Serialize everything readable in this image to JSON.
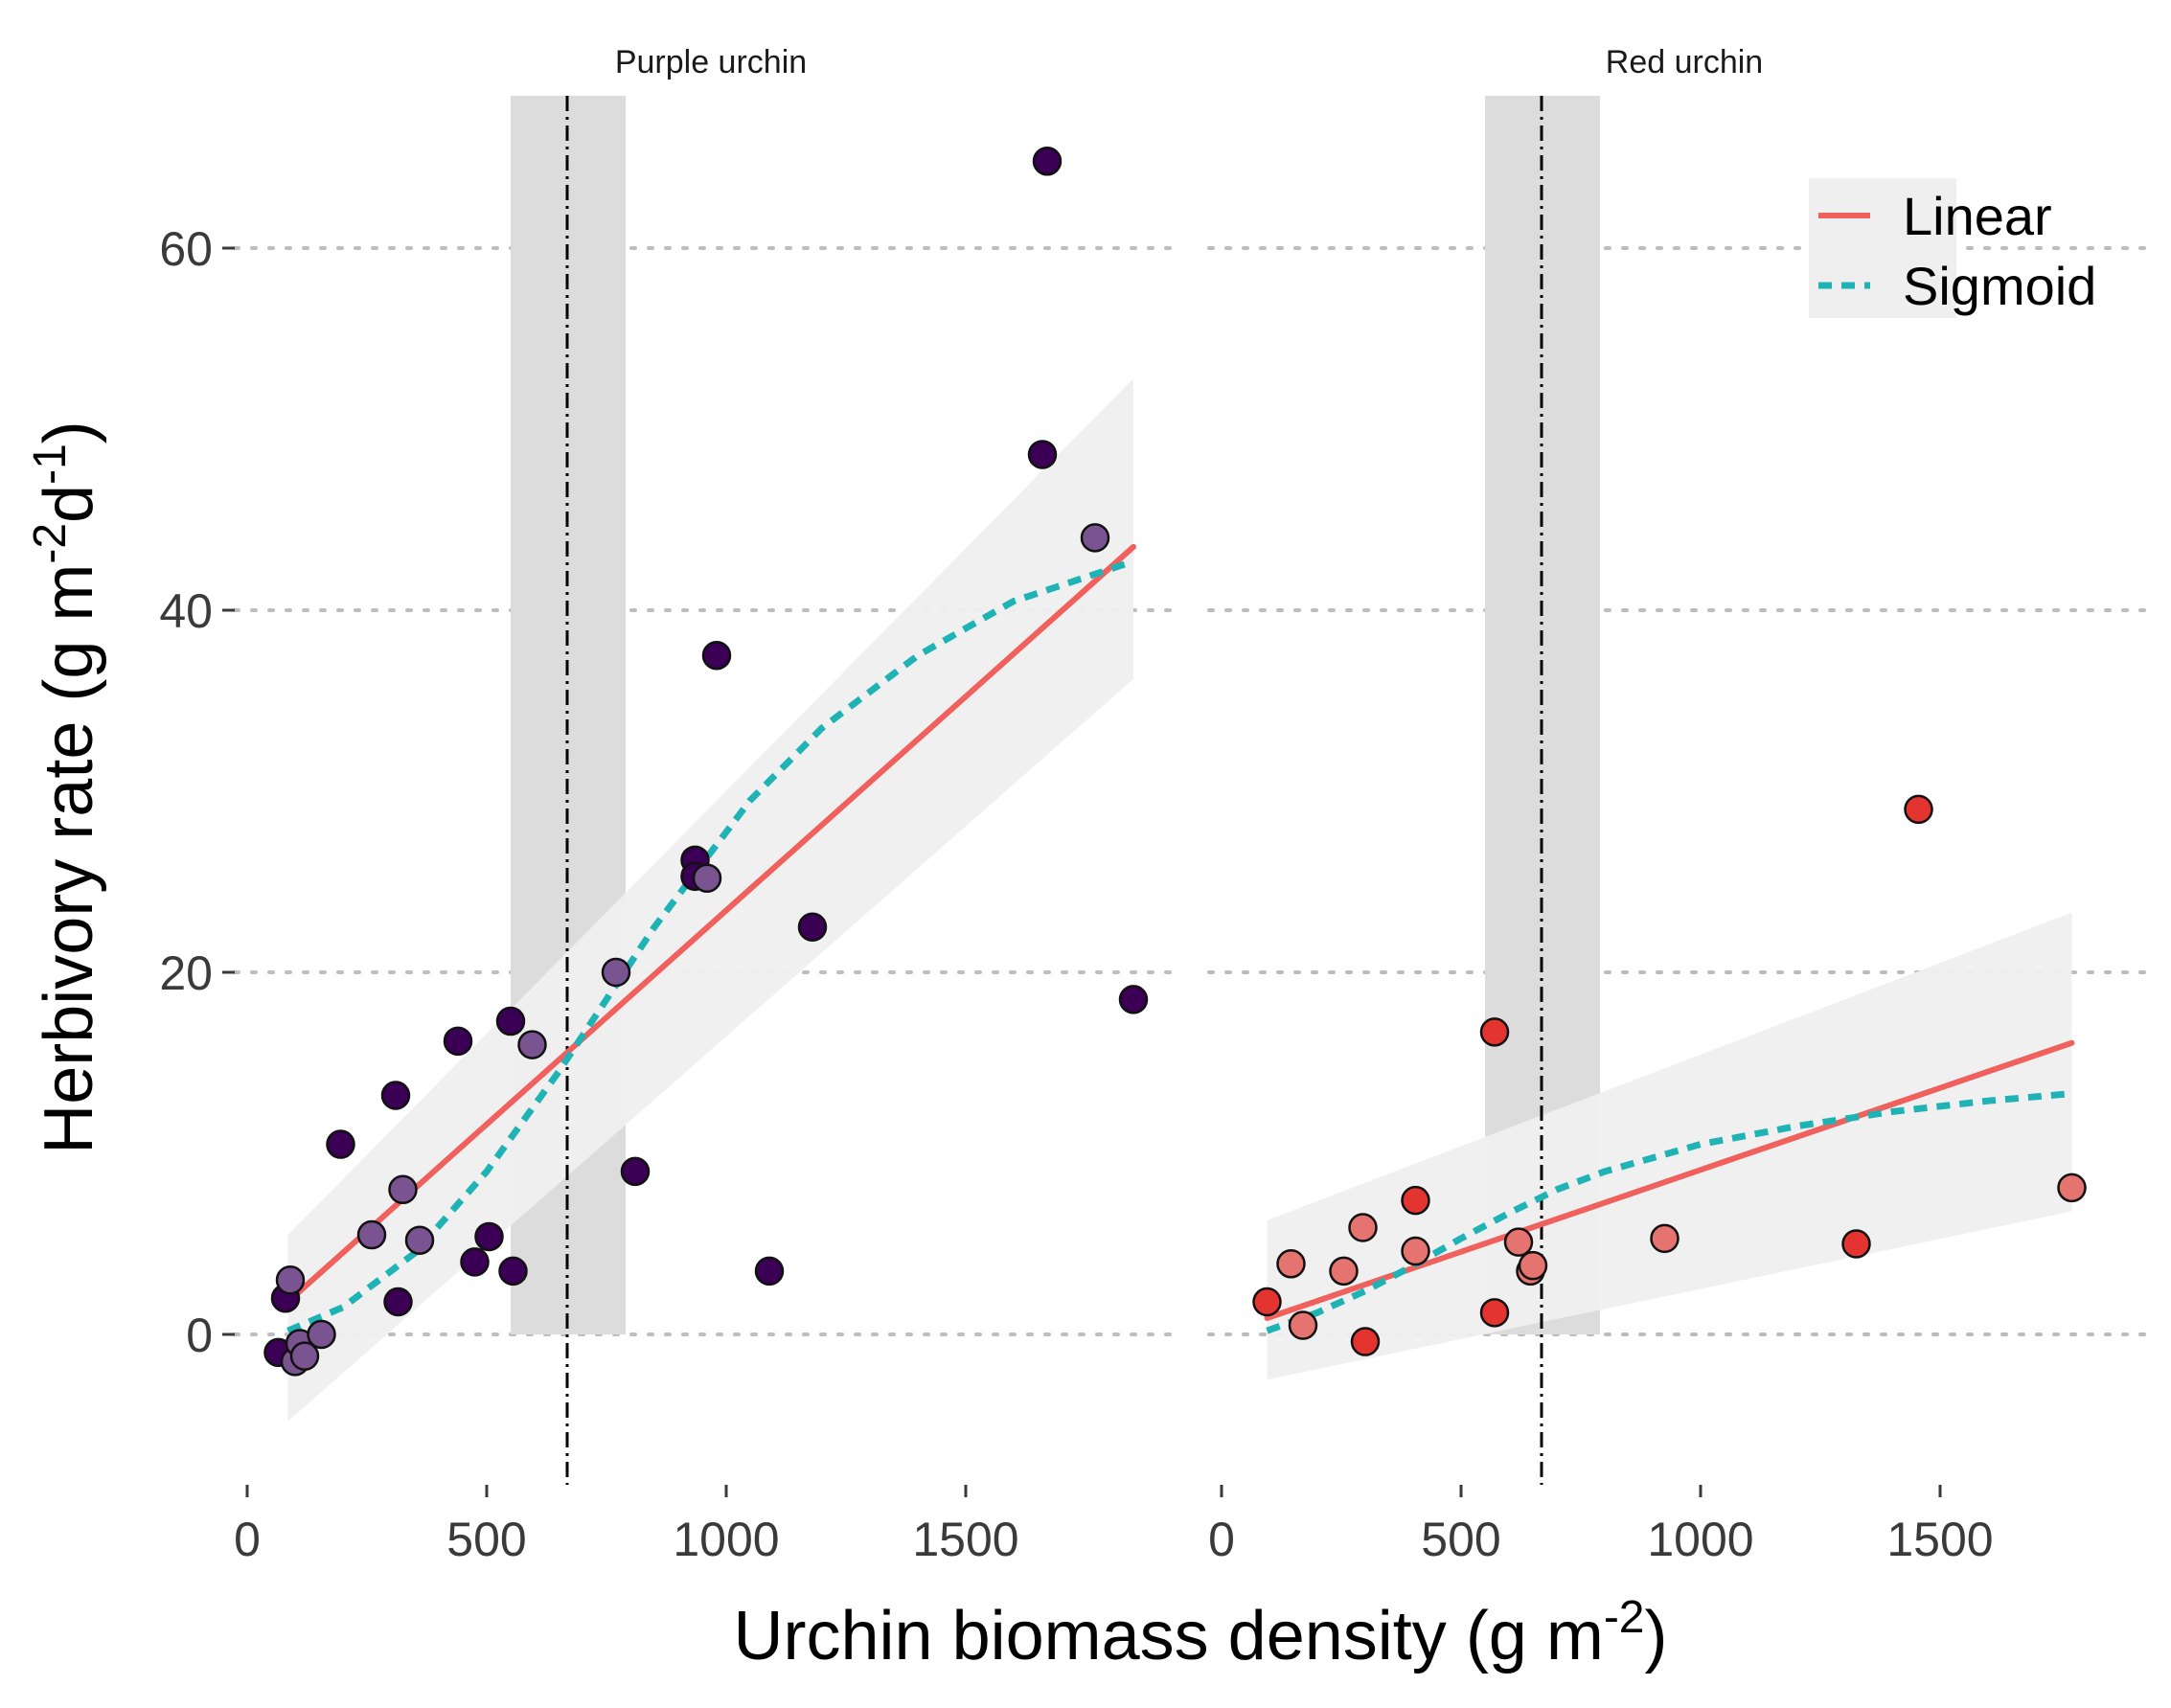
{
  "chart_data": {
    "type": "scatter",
    "xlabel": "Urchin biomass density (g m",
    "xlabel_sup": "-2",
    "xlabel_end": ")",
    "ylabel": "Herbivory rate (g m",
    "ylabel_sup1": "-2",
    "ylabel_mid": "d",
    "ylabel_sup2": "-1",
    "ylabel_end": ")",
    "y_ticks": [
      "0",
      "20",
      "40",
      "60"
    ],
    "x_ticks": [
      "0",
      "500",
      "1000",
      "1500"
    ],
    "ylim": [
      -8,
      68
    ],
    "xlim": [
      -50,
      1950
    ],
    "grid": "horizontal dotted",
    "legend": {
      "position": "top-right",
      "entries": [
        {
          "label": "Linear",
          "color": "#F0605D",
          "style": "solid"
        },
        {
          "label": "Sigmoid",
          "color": "#1FB3B5",
          "style": "dashed"
        }
      ]
    },
    "colors": {
      "linear": "#F0605D",
      "sigmoid": "#1FB3B5",
      "ci_band": "#EFEFEF",
      "threshold_band": "#DCDCDC",
      "purple_dark": "#3B0056",
      "purple_light": "#7A5491",
      "red_dark": "#E3342F",
      "red_light": "#E5736F"
    },
    "panels": [
      {
        "name": "Purple urchin",
        "threshold": 668,
        "threshold_band": [
          550,
          790
        ],
        "linear": [
          [
            85,
            1.8
          ],
          [
            1850,
            43.5
          ]
        ],
        "ci_band": {
          "x": [
            85,
            1850
          ],
          "upper": [
            5.5,
            52.8
          ],
          "lower": [
            -4.8,
            36.2
          ]
        },
        "sigmoid": [
          [
            85,
            0.2
          ],
          [
            200,
            1.5
          ],
          [
            350,
            4.5
          ],
          [
            500,
            9
          ],
          [
            650,
            14.5
          ],
          [
            750,
            18.5
          ],
          [
            850,
            22.5
          ],
          [
            950,
            26
          ],
          [
            1050,
            29.5
          ],
          [
            1200,
            33.5
          ],
          [
            1400,
            37.5
          ],
          [
            1600,
            40.5
          ],
          [
            1850,
            42.7
          ]
        ],
        "points": [
          {
            "x": 65,
            "y": -1,
            "shade": "dark"
          },
          {
            "x": 80,
            "y": 2,
            "shade": "dark"
          },
          {
            "x": 90,
            "y": 3,
            "shade": "light"
          },
          {
            "x": 100,
            "y": -1.5,
            "shade": "light"
          },
          {
            "x": 110,
            "y": -0.5,
            "shade": "light"
          },
          {
            "x": 120,
            "y": -1.2,
            "shade": "light"
          },
          {
            "x": 155,
            "y": 0,
            "shade": "light"
          },
          {
            "x": 195,
            "y": 10.5,
            "shade": "dark"
          },
          {
            "x": 260,
            "y": 5.5,
            "shade": "light"
          },
          {
            "x": 310,
            "y": 13.2,
            "shade": "dark"
          },
          {
            "x": 315,
            "y": 1.8,
            "shade": "dark"
          },
          {
            "x": 325,
            "y": 8,
            "shade": "light"
          },
          {
            "x": 360,
            "y": 5.2,
            "shade": "light"
          },
          {
            "x": 440,
            "y": 16.2,
            "shade": "dark"
          },
          {
            "x": 475,
            "y": 4,
            "shade": "dark"
          },
          {
            "x": 505,
            "y": 5.4,
            "shade": "dark"
          },
          {
            "x": 550,
            "y": 17.3,
            "shade": "dark"
          },
          {
            "x": 555,
            "y": 3.5,
            "shade": "dark"
          },
          {
            "x": 595,
            "y": 16,
            "shade": "light"
          },
          {
            "x": 770,
            "y": 20,
            "shade": "light"
          },
          {
            "x": 810,
            "y": 9,
            "shade": "dark"
          },
          {
            "x": 935,
            "y": 26.2,
            "shade": "dark"
          },
          {
            "x": 935,
            "y": 25.3,
            "shade": "dark"
          },
          {
            "x": 960,
            "y": 25.2,
            "shade": "light"
          },
          {
            "x": 980,
            "y": 37.5,
            "shade": "dark"
          },
          {
            "x": 1090,
            "y": 3.5,
            "shade": "dark"
          },
          {
            "x": 1180,
            "y": 22.5,
            "shade": "dark"
          },
          {
            "x": 1670,
            "y": 64.8,
            "shade": "dark"
          },
          {
            "x": 1660,
            "y": 48.6,
            "shade": "dark"
          },
          {
            "x": 1770,
            "y": 44,
            "shade": "light"
          },
          {
            "x": 1850,
            "y": 18.5,
            "shade": "dark"
          }
        ]
      },
      {
        "name": "Red urchin",
        "threshold": 668,
        "threshold_band": [
          550,
          790
        ],
        "linear": [
          [
            95,
            0.9
          ],
          [
            1775,
            16.1
          ]
        ],
        "ci_band": {
          "x": [
            95,
            1775
          ],
          "upper": [
            6.3,
            23.3
          ],
          "lower": [
            -2.5,
            6.8
          ]
        },
        "sigmoid": [
          [
            95,
            0.2
          ],
          [
            200,
            1.2
          ],
          [
            300,
            2.4
          ],
          [
            400,
            3.8
          ],
          [
            500,
            5.3
          ],
          [
            600,
            6.7
          ],
          [
            700,
            8
          ],
          [
            800,
            9
          ],
          [
            1000,
            10.5
          ],
          [
            1200,
            11.5
          ],
          [
            1400,
            12.3
          ],
          [
            1600,
            12.9
          ],
          [
            1775,
            13.3
          ]
        ],
        "points": [
          {
            "x": 95,
            "y": 1.8,
            "shade": "dark"
          },
          {
            "x": 145,
            "y": 3.9,
            "shade": "light"
          },
          {
            "x": 170,
            "y": 0.5,
            "shade": "light"
          },
          {
            "x": 255,
            "y": 3.5,
            "shade": "light"
          },
          {
            "x": 295,
            "y": 5.9,
            "shade": "light"
          },
          {
            "x": 300,
            "y": -0.4,
            "shade": "dark"
          },
          {
            "x": 405,
            "y": 7.4,
            "shade": "dark"
          },
          {
            "x": 405,
            "y": 4.6,
            "shade": "light"
          },
          {
            "x": 570,
            "y": 16.7,
            "shade": "dark"
          },
          {
            "x": 570,
            "y": 1.2,
            "shade": "dark"
          },
          {
            "x": 620,
            "y": 5.1,
            "shade": "light"
          },
          {
            "x": 645,
            "y": 3.5,
            "shade": "light"
          },
          {
            "x": 650,
            "y": 3.8,
            "shade": "light"
          },
          {
            "x": 925,
            "y": 5.3,
            "shade": "light"
          },
          {
            "x": 1325,
            "y": 5,
            "shade": "dark"
          },
          {
            "x": 1455,
            "y": 29,
            "shade": "dark"
          },
          {
            "x": 1775,
            "y": 8.1,
            "shade": "light"
          }
        ]
      }
    ]
  }
}
